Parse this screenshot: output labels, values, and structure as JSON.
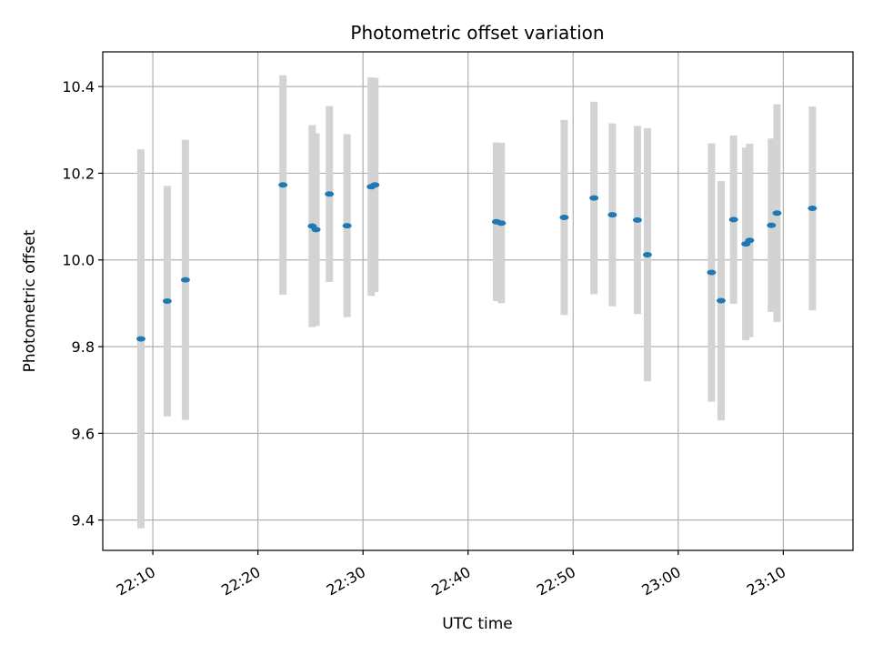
{
  "chart_data": {
    "type": "scatter",
    "title": "Photometric offset variation",
    "xlabel": "UTC time",
    "ylabel": "Photometric offset",
    "grid": true,
    "xlim": [
      "22:05:14",
      "23:16:38"
    ],
    "ylim": [
      9.33,
      10.48
    ],
    "xticks": [
      {
        "time": "22:10:00",
        "label": "22:10"
      },
      {
        "time": "22:20:00",
        "label": "22:20"
      },
      {
        "time": "22:30:00",
        "label": "22:30"
      },
      {
        "time": "22:40:00",
        "label": "22:40"
      },
      {
        "time": "22:50:00",
        "label": "22:50"
      },
      {
        "time": "23:00:00",
        "label": "23:00"
      },
      {
        "time": "23:10:00",
        "label": "23:10"
      }
    ],
    "yticks": [
      9.4,
      9.6,
      9.8,
      10.0,
      10.2,
      10.4
    ],
    "ytick_labels": [
      "9.4",
      "9.6",
      "9.8",
      "10.0",
      "10.2",
      "10.4"
    ],
    "colors": {
      "marker": "#1f77b4",
      "errorbar": "#d3d3d3",
      "grid": "#b0b0b0"
    },
    "points": [
      {
        "t": "22:08:52",
        "y": 9.818,
        "err": 0.437
      },
      {
        "t": "22:11:22",
        "y": 9.905,
        "err": 0.266
      },
      {
        "t": "22:13:06",
        "y": 9.954,
        "err": 0.323
      },
      {
        "t": "22:22:23",
        "y": 10.173,
        "err": 0.253
      },
      {
        "t": "22:25:10",
        "y": 10.078,
        "err": 0.233
      },
      {
        "t": "22:25:32",
        "y": 10.07,
        "err": 0.222
      },
      {
        "t": "22:26:48",
        "y": 10.152,
        "err": 0.203
      },
      {
        "t": "22:28:29",
        "y": 10.079,
        "err": 0.211
      },
      {
        "t": "22:30:47",
        "y": 10.169,
        "err": 0.252
      },
      {
        "t": "22:31:08",
        "y": 10.173,
        "err": 0.247
      },
      {
        "t": "22:42:42",
        "y": 10.088,
        "err": 0.183
      },
      {
        "t": "22:43:10",
        "y": 10.085,
        "err": 0.185
      },
      {
        "t": "22:49:09",
        "y": 10.098,
        "err": 0.225
      },
      {
        "t": "22:51:59",
        "y": 10.143,
        "err": 0.222
      },
      {
        "t": "22:53:44",
        "y": 10.104,
        "err": 0.211
      },
      {
        "t": "22:56:07",
        "y": 10.092,
        "err": 0.217
      },
      {
        "t": "22:57:04",
        "y": 10.012,
        "err": 0.292
      },
      {
        "t": "23:03:10",
        "y": 9.971,
        "err": 0.298
      },
      {
        "t": "23:04:05",
        "y": 9.906,
        "err": 0.276
      },
      {
        "t": "23:05:16",
        "y": 10.093,
        "err": 0.194
      },
      {
        "t": "23:06:26",
        "y": 10.037,
        "err": 0.222
      },
      {
        "t": "23:06:48",
        "y": 10.045,
        "err": 0.223
      },
      {
        "t": "23:08:52",
        "y": 10.08,
        "err": 0.2
      },
      {
        "t": "23:09:24",
        "y": 10.108,
        "err": 0.251
      },
      {
        "t": "23:12:46",
        "y": 10.119,
        "err": 0.235
      }
    ]
  }
}
